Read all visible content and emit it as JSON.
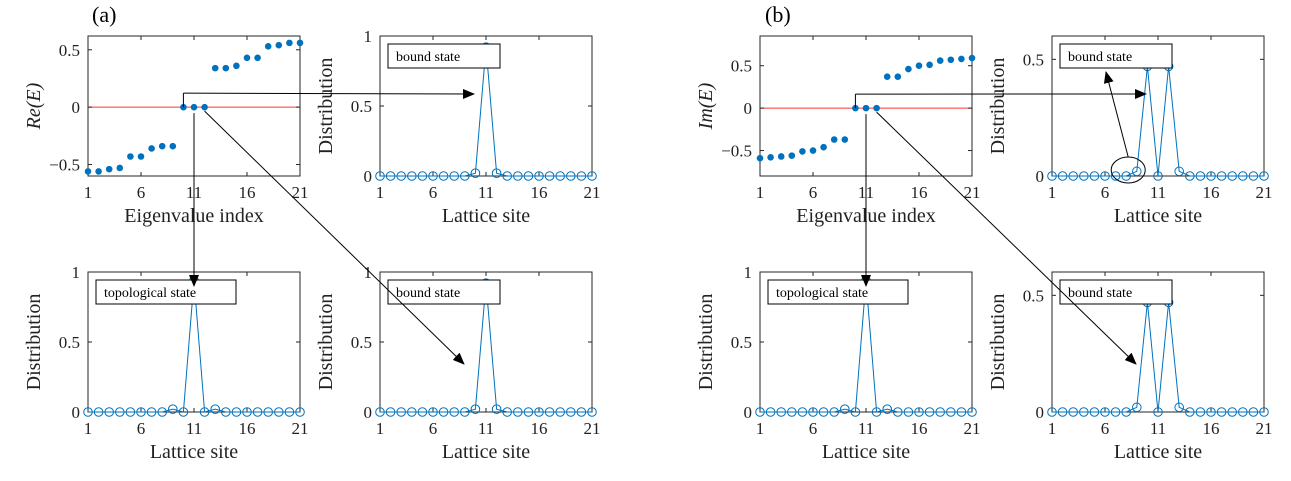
{
  "figure": {
    "labels": {
      "a": "(a)",
      "b": "(b)"
    }
  },
  "chart_data": [
    {
      "id": "a-eig",
      "type": "scatter",
      "xlabel": "Eigenvalue index",
      "ylabel": "Re(E)",
      "xlim": [
        1,
        21
      ],
      "ylim": [
        -0.6,
        0.62
      ],
      "xticks": [
        1,
        6,
        11,
        16,
        21
      ],
      "yticks": [
        -0.5,
        0,
        0.5
      ],
      "ytick_labels": [
        "-0.5",
        "0",
        "0.5"
      ],
      "zero_line": true,
      "marker": "filled-dot",
      "series": [
        {
          "x": [
            1,
            2,
            3,
            4,
            5,
            6,
            7,
            8,
            9,
            10,
            11,
            12,
            13,
            14,
            15,
            16,
            17,
            18,
            19,
            20,
            21
          ],
          "values": [
            -0.56,
            -0.56,
            -0.54,
            -0.53,
            -0.43,
            -0.43,
            -0.36,
            -0.34,
            -0.34,
            0.0,
            0.0,
            0.0,
            0.34,
            0.34,
            0.36,
            0.43,
            0.43,
            0.53,
            0.54,
            0.56,
            0.56
          ]
        }
      ]
    },
    {
      "id": "a-dist-top",
      "type": "line",
      "xlabel": "Lattice site",
      "ylabel": "Distribution",
      "xlim": [
        1,
        21
      ],
      "ylim": [
        0,
        1
      ],
      "xticks": [
        1,
        6,
        11,
        16,
        21
      ],
      "yticks": [
        0,
        0.5,
        1
      ],
      "ytick_labels": [
        "0",
        "0.5",
        "1"
      ],
      "marker": "open-circle",
      "annotation": "bound state",
      "series": [
        {
          "x": [
            1,
            2,
            3,
            4,
            5,
            6,
            7,
            8,
            9,
            10,
            11,
            12,
            13,
            14,
            15,
            16,
            17,
            18,
            19,
            20,
            21
          ],
          "values": [
            0,
            0,
            0,
            0,
            0,
            0,
            0,
            0,
            0,
            0.02,
            0.92,
            0.02,
            0,
            0,
            0,
            0,
            0,
            0,
            0,
            0,
            0
          ]
        }
      ]
    },
    {
      "id": "a-dist-bl",
      "type": "line",
      "xlabel": "Lattice site",
      "ylabel": "Distribution",
      "xlim": [
        1,
        21
      ],
      "ylim": [
        0,
        1
      ],
      "xticks": [
        1,
        6,
        11,
        16,
        21
      ],
      "yticks": [
        0,
        0.5,
        1
      ],
      "ytick_labels": [
        "0",
        "0.5",
        "1"
      ],
      "marker": "open-circle",
      "annotation": "topological state",
      "series": [
        {
          "x": [
            1,
            2,
            3,
            4,
            5,
            6,
            7,
            8,
            9,
            10,
            11,
            12,
            13,
            14,
            15,
            16,
            17,
            18,
            19,
            20,
            21
          ],
          "values": [
            0,
            0,
            0,
            0,
            0,
            0,
            0,
            0,
            0.02,
            0,
            0.94,
            0,
            0.02,
            0,
            0,
            0,
            0,
            0,
            0,
            0,
            0
          ]
        }
      ]
    },
    {
      "id": "a-dist-br",
      "type": "line",
      "xlabel": "Lattice site",
      "ylabel": "Distribution",
      "xlim": [
        1,
        21
      ],
      "ylim": [
        0,
        1
      ],
      "xticks": [
        1,
        6,
        11,
        16,
        21
      ],
      "yticks": [
        0,
        0.5,
        1
      ],
      "ytick_labels": [
        "0",
        "0.5",
        "1"
      ],
      "marker": "open-circle",
      "annotation": "bound state",
      "series": [
        {
          "x": [
            1,
            2,
            3,
            4,
            5,
            6,
            7,
            8,
            9,
            10,
            11,
            12,
            13,
            14,
            15,
            16,
            17,
            18,
            19,
            20,
            21
          ],
          "values": [
            0,
            0,
            0,
            0,
            0,
            0,
            0,
            0,
            0,
            0.02,
            0.92,
            0.02,
            0,
            0,
            0,
            0,
            0,
            0,
            0,
            0,
            0
          ]
        }
      ]
    },
    {
      "id": "b-eig",
      "type": "scatter",
      "xlabel": "Eigenvalue index",
      "ylabel": "Im(E)",
      "xlim": [
        1,
        21
      ],
      "ylim": [
        -0.8,
        0.85
      ],
      "xticks": [
        1,
        6,
        11,
        16,
        21
      ],
      "yticks": [
        -0.5,
        0,
        0.5
      ],
      "ytick_labels": [
        "-0.5",
        "0",
        "0.5"
      ],
      "zero_line": true,
      "marker": "filled-dot",
      "series": [
        {
          "x": [
            1,
            2,
            3,
            4,
            5,
            6,
            7,
            8,
            9,
            10,
            11,
            12,
            13,
            14,
            15,
            16,
            17,
            18,
            19,
            20,
            21
          ],
          "values": [
            -0.59,
            -0.58,
            -0.57,
            -0.56,
            -0.51,
            -0.5,
            -0.46,
            -0.37,
            -0.37,
            0.0,
            0.0,
            0.0,
            0.37,
            0.37,
            0.46,
            0.5,
            0.51,
            0.56,
            0.57,
            0.58,
            0.59
          ]
        }
      ]
    },
    {
      "id": "b-dist-top",
      "type": "line",
      "xlabel": "Lattice site",
      "ylabel": "Distribution",
      "xlim": [
        1,
        21
      ],
      "ylim": [
        0,
        0.6
      ],
      "xticks": [
        1,
        6,
        11,
        16,
        21
      ],
      "yticks": [
        0,
        0.5
      ],
      "ytick_labels": [
        "0",
        "0.5"
      ],
      "marker": "open-circle",
      "annotation": "bound state",
      "ellipse_x": 8,
      "series": [
        {
          "x": [
            1,
            2,
            3,
            4,
            5,
            6,
            7,
            8,
            9,
            10,
            11,
            12,
            13,
            14,
            15,
            16,
            17,
            18,
            19,
            20,
            21
          ],
          "values": [
            0,
            0,
            0,
            0,
            0,
            0,
            0,
            0,
            0.02,
            0.47,
            0,
            0.47,
            0.02,
            0,
            0,
            0,
            0,
            0,
            0,
            0,
            0
          ]
        }
      ]
    },
    {
      "id": "b-dist-bl",
      "type": "line",
      "xlabel": "Lattice site",
      "ylabel": "Distribution",
      "xlim": [
        1,
        21
      ],
      "ylim": [
        0,
        1
      ],
      "xticks": [
        1,
        6,
        11,
        16,
        21
      ],
      "yticks": [
        0,
        0.5,
        1
      ],
      "ytick_labels": [
        "0",
        "0.5",
        "1"
      ],
      "marker": "open-circle",
      "annotation": "topological state",
      "series": [
        {
          "x": [
            1,
            2,
            3,
            4,
            5,
            6,
            7,
            8,
            9,
            10,
            11,
            12,
            13,
            14,
            15,
            16,
            17,
            18,
            19,
            20,
            21
          ],
          "values": [
            0,
            0,
            0,
            0,
            0,
            0,
            0,
            0,
            0.02,
            0,
            0.94,
            0,
            0.02,
            0,
            0,
            0,
            0,
            0,
            0,
            0,
            0
          ]
        }
      ]
    },
    {
      "id": "b-dist-br",
      "type": "line",
      "xlabel": "Lattice site",
      "ylabel": "Distribution",
      "xlim": [
        1,
        21
      ],
      "ylim": [
        0,
        0.6
      ],
      "xticks": [
        1,
        6,
        11,
        16,
        21
      ],
      "yticks": [
        0,
        0.5
      ],
      "ytick_labels": [
        "0",
        "0.5"
      ],
      "marker": "open-circle",
      "annotation": "bound state",
      "series": [
        {
          "x": [
            1,
            2,
            3,
            4,
            5,
            6,
            7,
            8,
            9,
            10,
            11,
            12,
            13,
            14,
            15,
            16,
            17,
            18,
            19,
            20,
            21
          ],
          "values": [
            0,
            0,
            0,
            0,
            0,
            0,
            0,
            0,
            0.02,
            0.47,
            0,
            0.47,
            0.02,
            0,
            0,
            0,
            0,
            0,
            0,
            0,
            0
          ]
        }
      ]
    }
  ]
}
